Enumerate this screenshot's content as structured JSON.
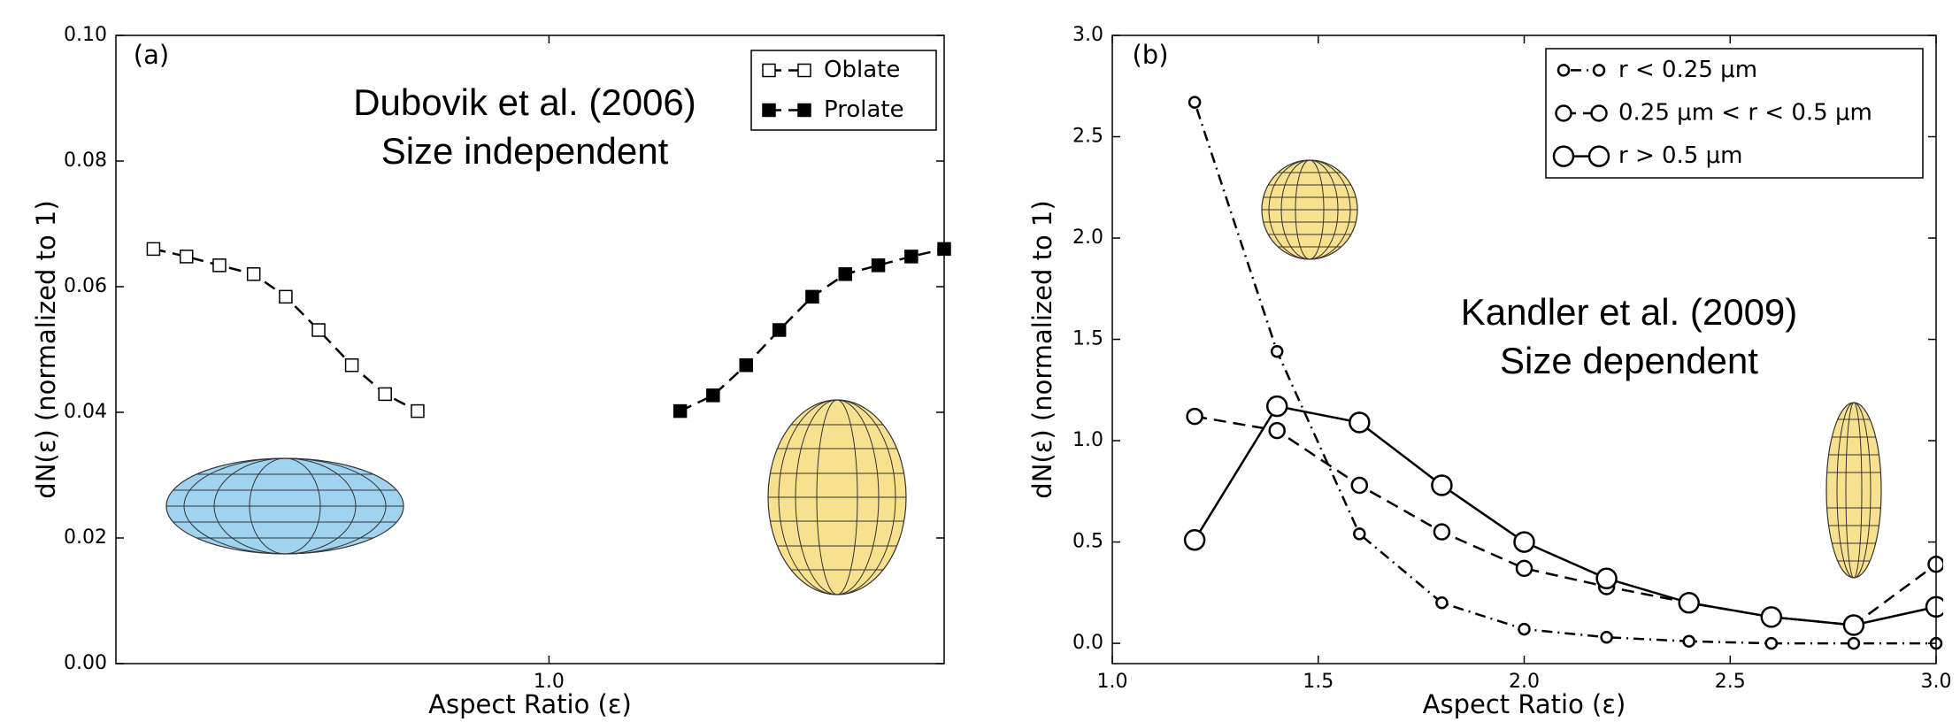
{
  "chart_data": [
    {
      "type": "line",
      "panel_label": "(a)",
      "annotations": [
        "Dubovik et al. (2006)",
        "Size independent"
      ],
      "x_label": "Aspect Ratio (ε)",
      "y_label": "dN(ε) (normalized to 1)",
      "xscale": "log",
      "xlim": [
        0.3,
        3.0
      ],
      "xticks": [
        {
          "value": 1.0,
          "label": "1.0"
        }
      ],
      "ylim": [
        0,
        0.1
      ],
      "yticks": [
        {
          "value": 0,
          "label": "0.00"
        },
        {
          "value": 0.02,
          "label": "0.02"
        },
        {
          "value": 0.04,
          "label": "0.04"
        },
        {
          "value": 0.06,
          "label": "0.06"
        },
        {
          "value": 0.08,
          "label": "0.08"
        },
        {
          "value": 0.1,
          "label": "0.10"
        }
      ],
      "legend": "upper right",
      "series": [
        {
          "name": "Oblate",
          "color": "#000000",
          "marker": "square",
          "marker_face": "#ffffff",
          "marker_size": 14,
          "line_style": "dashed",
          "x": [
            0.333,
            0.365,
            0.4,
            0.44,
            0.481,
            0.527,
            0.578,
            0.634,
            0.694
          ],
          "values": [
            0.066,
            0.0648,
            0.0634,
            0.062,
            0.0584,
            0.0531,
            0.0475,
            0.0429,
            0.0402
          ]
        },
        {
          "name": "Prolate",
          "color": "#000000",
          "marker": "square",
          "marker_face": "#000000",
          "marker_size": 14,
          "line_style": "dashed",
          "x": [
            1.44,
            1.578,
            1.73,
            1.897,
            2.079,
            2.279,
            2.498,
            2.738,
            3.0
          ],
          "values": [
            0.0402,
            0.0427,
            0.0475,
            0.0531,
            0.0584,
            0.062,
            0.0634,
            0.0648,
            0.066
          ]
        }
      ]
    },
    {
      "type": "line",
      "panel_label": "(b)",
      "annotations": [
        "Kandler et al. (2009)",
        "Size dependent"
      ],
      "x_label": "Aspect Ratio (ε)",
      "y_label": "dN(ε) (normalized to 1)",
      "xscale": "linear",
      "xlim": [
        1.0,
        3.0
      ],
      "xticks": [
        {
          "value": 1.0,
          "label": "1.0"
        },
        1.5,
        {
          "value": 2.0,
          "label": "2.0"
        },
        2.5,
        {
          "value": 3.0,
          "label": "3.0"
        }
      ],
      "ylim": [
        -0.1,
        3.0
      ],
      "yticks": [
        {
          "value": 0,
          "label": "0.0"
        },
        0.5,
        {
          "value": 1.0,
          "label": "1.0"
        },
        1.5,
        {
          "value": 2.0,
          "label": "2.0"
        },
        2.5,
        {
          "value": 3.0,
          "label": "3.0"
        }
      ],
      "legend": "upper right",
      "series": [
        {
          "name": "r < 0.25 μm",
          "color": "#000000",
          "marker": "circle",
          "marker_face": "#ffffff",
          "marker_size": 6,
          "line_style": "dashdot",
          "x": [
            1.2,
            1.4,
            1.6,
            1.8,
            2.0,
            2.2,
            2.4,
            2.6,
            2.8,
            3.0
          ],
          "values": [
            2.67,
            1.44,
            0.54,
            0.2,
            0.07,
            0.03,
            0.01,
            0.0,
            0.0,
            0.0
          ]
        },
        {
          "name": "0.25 μm < r < 0.5 μm",
          "color": "#000000",
          "marker": "circle",
          "marker_face": "#ffffff",
          "marker_size": 8.5,
          "line_style": "dashed",
          "x": [
            1.2,
            1.4,
            1.6,
            1.8,
            2.0,
            2.2,
            2.4,
            2.6,
            2.8,
            3.0
          ],
          "values": [
            1.12,
            1.05,
            0.78,
            0.55,
            0.37,
            0.28,
            0.2,
            0.13,
            0.09,
            0.39
          ]
        },
        {
          "name": "r > 0.5 μm",
          "color": "#000000",
          "marker": "circle",
          "marker_face": "#ffffff",
          "marker_size": 11,
          "line_style": "solid",
          "x": [
            1.2,
            1.4,
            1.6,
            1.8,
            2.0,
            2.2,
            2.4,
            2.6,
            2.8,
            3.0
          ],
          "values": [
            0.51,
            1.17,
            1.09,
            0.78,
            0.5,
            0.32,
            0.2,
            0.13,
            0.09,
            0.18
          ]
        }
      ]
    }
  ]
}
